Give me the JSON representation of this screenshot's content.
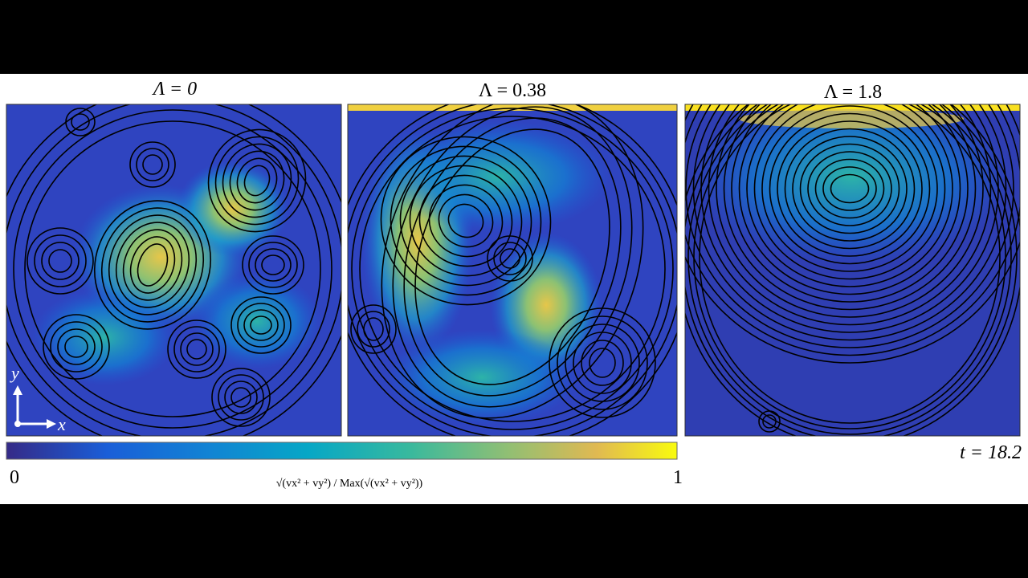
{
  "panels": [
    {
      "label": "Λ = 0"
    },
    {
      "label": "Λ = 0.38"
    },
    {
      "label": "Λ = 1.8"
    }
  ],
  "axes": {
    "y": "y",
    "x": "x"
  },
  "colorbar": {
    "min_label": "0",
    "max_label": "1",
    "label": "√(vx² + vy²) / Max(√(vx² + vy²))"
  },
  "time_label": "t = 18.2"
}
